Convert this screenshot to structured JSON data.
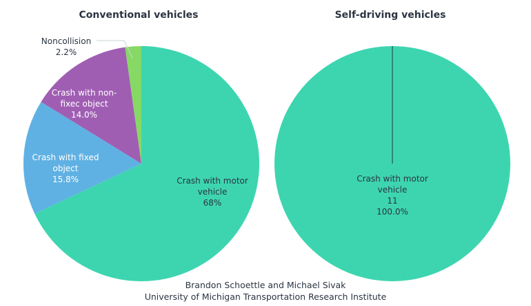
{
  "credits": [
    "Brandon Schoettle and Michael Sivak",
    "University of Michigan Transportation Research Institute"
  ],
  "chart_data": [
    {
      "type": "pie",
      "title": "Conventional vehicles",
      "slices": [
        {
          "label": "Crash with motor vehicle",
          "label_lines": [
            "Crash with motor",
            "vehicle",
            "68%"
          ],
          "value": 68.0,
          "color": "#3dd5b0",
          "text_color": "#2b3442"
        },
        {
          "label": "Crash with fixed object",
          "label_lines": [
            "Crash with fixed",
            "object",
            "15.8%"
          ],
          "value": 15.8,
          "color": "#60b1e3",
          "text_color": "#ffffff"
        },
        {
          "label": "Crash with non-fixec object",
          "label_lines": [
            "Crash with non-",
            "fixec object",
            "14.0%"
          ],
          "value": 14.0,
          "color": "#a05eb3",
          "text_color": "#ffffff"
        },
        {
          "label": "Noncollision",
          "label_lines": [
            "Noncollision",
            "2.2%"
          ],
          "value": 2.2,
          "color": "#86d964",
          "text_color": "#2b3442"
        }
      ]
    },
    {
      "type": "pie",
      "title": "Self-driving vehicles",
      "slices": [
        {
          "label": "Crash with motor vehicle",
          "label_lines": [
            "Crash with motor",
            "vehicle",
            "11",
            "100.0%"
          ],
          "value": 11,
          "percent": 100.0,
          "color": "#3dd5b0",
          "text_color": "#2b3442"
        }
      ]
    }
  ]
}
